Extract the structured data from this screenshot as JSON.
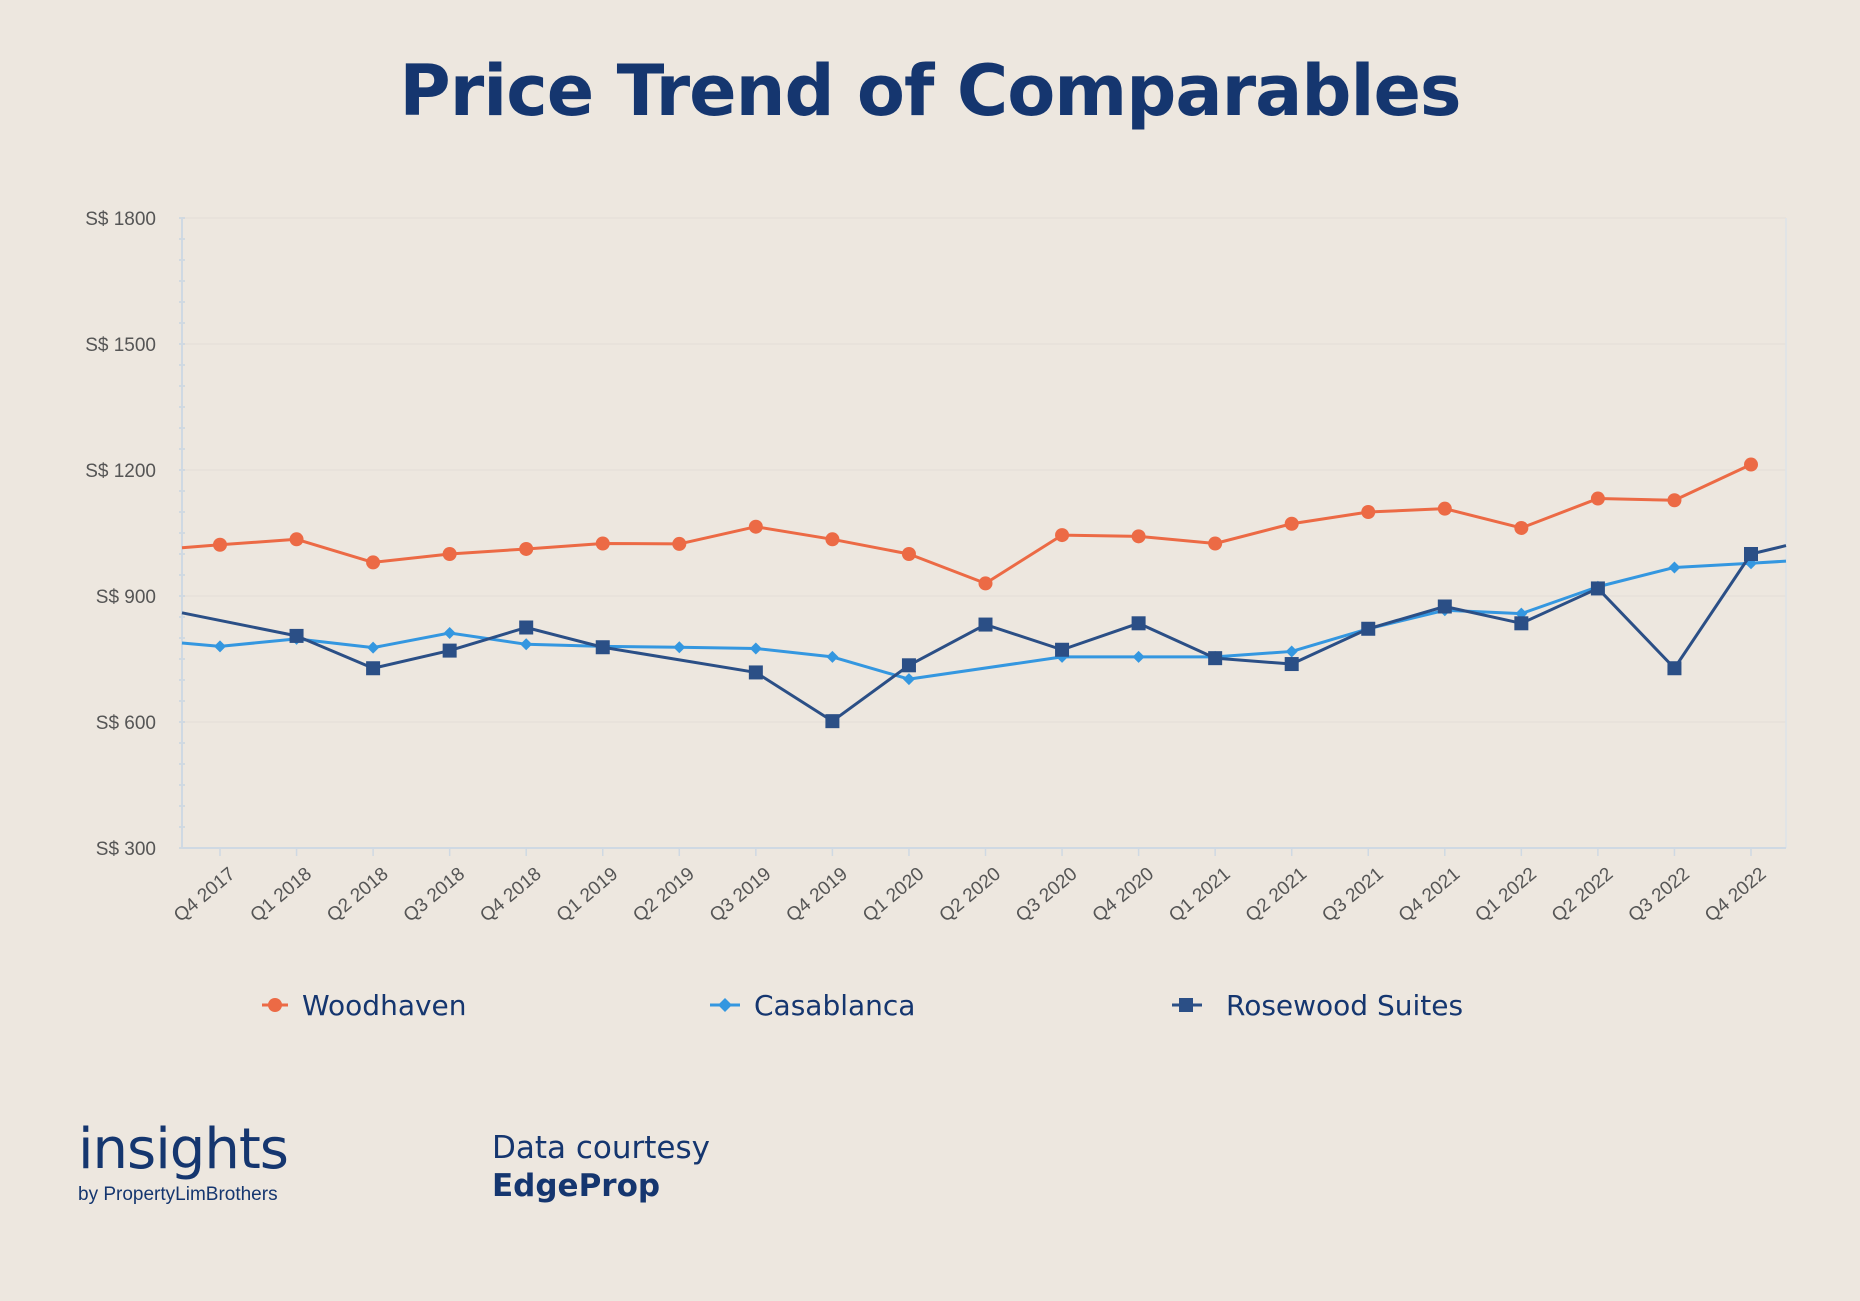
{
  "chart_data": {
    "type": "line",
    "title": "Price Trend of Comparables",
    "categories": [
      "Q4 2017",
      "Q1 2018",
      "Q2 2018",
      "Q3 2018",
      "Q4 2018",
      "Q1 2019",
      "Q2 2019",
      "Q3 2019",
      "Q4 2019",
      "Q1 2020",
      "Q2 2020",
      "Q3 2020",
      "Q4 2020",
      "Q1 2021",
      "Q2 2021",
      "Q3 2021",
      "Q4 2021",
      "Q1 2022",
      "Q2 2022",
      "Q3 2022",
      "Q4 2022"
    ],
    "yticks": [
      300,
      600,
      900,
      1200,
      1500,
      1800
    ],
    "ytick_labels": [
      "S$ 300",
      "S$ 600",
      "S$ 900",
      "S$ 1200",
      "S$ 1500",
      "S$ 1800"
    ],
    "ylim": [
      300,
      1800
    ],
    "xlabel": "",
    "ylabel": "",
    "legend_position": "bottom",
    "grid": true,
    "series": [
      {
        "name": "Woodhaven",
        "color": "#ec6a45",
        "marker": "circle",
        "values": [
          1022,
          1035,
          980,
          1000,
          1012,
          1025,
          1024,
          1065,
          1035,
          1000,
          930,
          1045,
          1042,
          1025,
          1072,
          1100,
          1108,
          1062,
          1132,
          1128,
          1213
        ],
        "start_value": 1015,
        "end_value": null
      },
      {
        "name": "Casablanca",
        "color": "#3497e0",
        "marker": "diamond",
        "values": [
          780,
          798,
          777,
          812,
          785,
          780,
          778,
          775,
          755,
          702,
          null,
          755,
          755,
          755,
          768,
          822,
          866,
          858,
          922,
          968,
          978
        ],
        "start_value": 788,
        "end_value": 983
      },
      {
        "name": "Rosewood Suites",
        "color": "#2b4f86",
        "marker": "square",
        "values": [
          null,
          805,
          728,
          770,
          825,
          778,
          null,
          718,
          602,
          735,
          832,
          772,
          835,
          752,
          738,
          822,
          875,
          835,
          918,
          728,
          1000
        ],
        "start_value": 860,
        "end_value": 1020
      }
    ]
  },
  "brand": {
    "name": "insights",
    "tagline": "by PropertyLimBrothers"
  },
  "credit": {
    "label": "Data courtesy",
    "source": "EdgeProp"
  }
}
